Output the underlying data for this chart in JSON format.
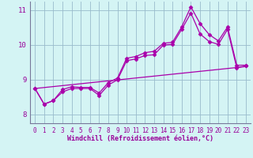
{
  "xlabel": "Windchill (Refroidissement éolien,°C)",
  "ylabel": "",
  "background_color": "#d4f4f4",
  "line_color": "#aa00aa",
  "grid_color": "#99bbcc",
  "text_color": "#990099",
  "xlim": [
    -0.5,
    23.5
  ],
  "ylim": [
    7.75,
    11.25
  ],
  "yticks": [
    8,
    9,
    10,
    11
  ],
  "xticks": [
    0,
    1,
    2,
    3,
    4,
    5,
    6,
    7,
    8,
    9,
    10,
    11,
    12,
    13,
    14,
    15,
    16,
    17,
    18,
    19,
    20,
    21,
    22,
    23
  ],
  "series": [
    {
      "x": [
        0,
        1,
        2,
        3,
        4,
        5,
        6,
        7,
        8,
        9,
        10,
        11,
        12,
        13,
        14,
        15,
        16,
        17,
        18,
        19,
        20,
        21,
        22,
        23
      ],
      "y": [
        8.75,
        8.3,
        8.4,
        8.65,
        8.75,
        8.75,
        8.75,
        8.55,
        8.85,
        9.0,
        9.55,
        9.6,
        9.7,
        9.72,
        10.0,
        10.02,
        10.45,
        10.92,
        10.32,
        10.1,
        10.02,
        10.45,
        9.35,
        9.4
      ]
    },
    {
      "x": [
        0,
        1,
        2,
        3,
        4,
        5,
        6,
        7,
        8,
        9,
        10,
        11,
        12,
        13,
        14,
        15,
        16,
        17,
        18,
        19,
        20,
        21,
        22,
        23
      ],
      "y": [
        8.75,
        8.3,
        8.4,
        8.72,
        8.8,
        8.78,
        8.78,
        8.62,
        8.92,
        9.05,
        9.62,
        9.67,
        9.78,
        9.82,
        10.05,
        10.08,
        10.52,
        11.1,
        10.62,
        10.3,
        10.12,
        10.52,
        9.42,
        9.42
      ]
    },
    {
      "x": [
        0,
        23
      ],
      "y": [
        8.75,
        9.38
      ]
    }
  ],
  "marker": "D",
  "markersize": 2.5,
  "linewidth": 0.9,
  "tick_fontsize": 5.5,
  "xlabel_fontsize": 6.0,
  "ytick_fontsize": 6.5
}
